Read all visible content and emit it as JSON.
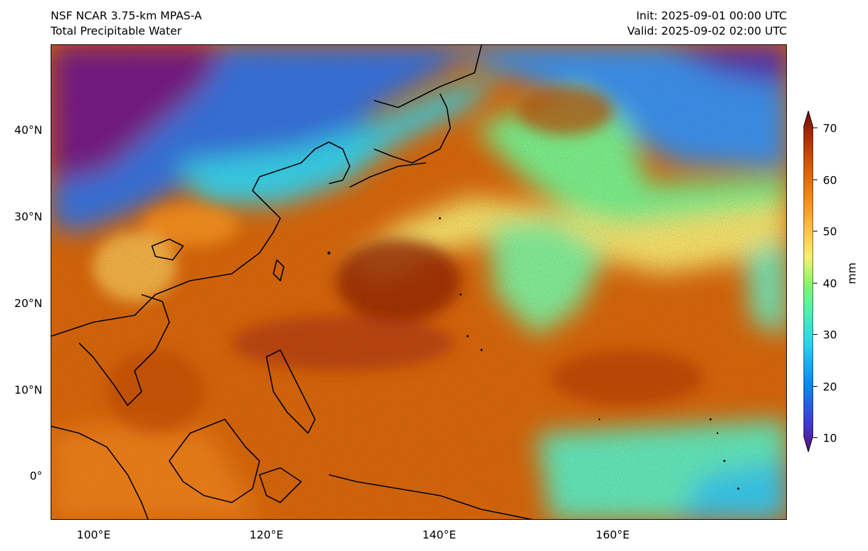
{
  "header": {
    "title_line1": "NSF NCAR 3.75-km MPAS-A",
    "title_line2": "Total Precipitable Water",
    "init": "Init: 2025-09-01 00:00 UTC",
    "valid": "Valid: 2025-09-02 02:00 UTC"
  },
  "map": {
    "lat_labels": [
      "40°N",
      "30°N",
      "20°N",
      "10°N",
      "0°"
    ],
    "lon_labels": [
      "100°E",
      "120°E",
      "140°E",
      "160°E"
    ],
    "colorbar": {
      "unit": "mm",
      "ticks": [
        "70",
        "60",
        "50",
        "40",
        "30",
        "20",
        "10"
      ],
      "min": 10,
      "max": 70,
      "colors": [
        "#5a1079",
        "#3d3ed6",
        "#0a8bf0",
        "#2bd4f0",
        "#4ff3a7",
        "#8ff56a",
        "#f5f070",
        "#ffc24a",
        "#f28c1a",
        "#d45a07",
        "#a72a07",
        "#720d05"
      ]
    }
  }
}
